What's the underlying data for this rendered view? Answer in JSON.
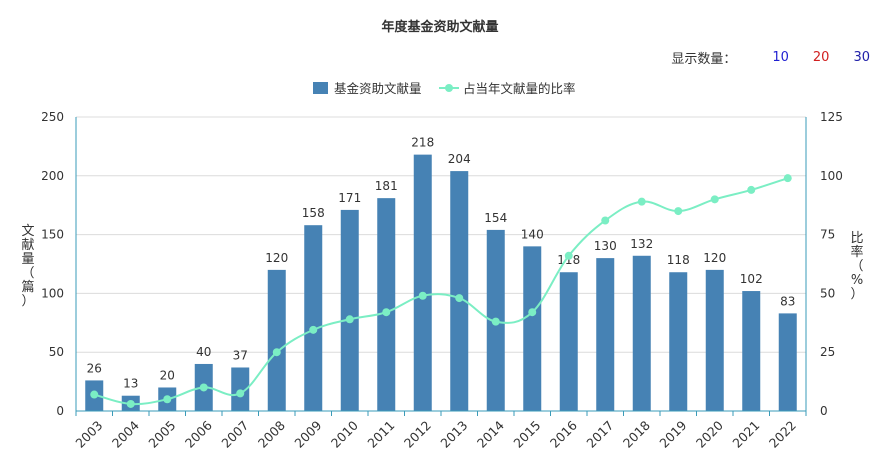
{
  "count_control": {
    "label": "显示数量：",
    "options": [
      {
        "label": "10",
        "color": "#1f1fd1"
      },
      {
        "label": "20",
        "color": "#d11f1f"
      },
      {
        "label": "30",
        "color": "#1f1fa8"
      }
    ]
  },
  "chart_data": {
    "type": "bar",
    "title": "年度基金资助文献量",
    "categories": [
      "2003",
      "2004",
      "2005",
      "2006",
      "2007",
      "2008",
      "2009",
      "2010",
      "2011",
      "2012",
      "2013",
      "2014",
      "2015",
      "2016",
      "2017",
      "2018",
      "2019",
      "2020",
      "2021",
      "2022"
    ],
    "series": [
      {
        "name": "基金资助文献量",
        "type": "bar",
        "axis": "left",
        "color": "#4682b4",
        "values": [
          26,
          13,
          20,
          40,
          37,
          120,
          158,
          171,
          181,
          218,
          204,
          154,
          140,
          118,
          130,
          132,
          118,
          120,
          102,
          83
        ]
      },
      {
        "name": "占当年文献量的比率",
        "type": "line",
        "axis": "right",
        "color": "#7beec4",
        "values": [
          7,
          3,
          5,
          10,
          7.5,
          25,
          34.5,
          39,
          42,
          49,
          48,
          38,
          42,
          66,
          81,
          89,
          85,
          90,
          94,
          99
        ]
      }
    ],
    "ylabel": "文献量（篇）",
    "ylabel2": "比率（%）",
    "ylim": [
      0,
      250
    ],
    "ylim2": [
      0,
      125
    ],
    "yticks": [
      "0",
      "50",
      "100",
      "150",
      "200",
      "250"
    ],
    "yticks2": [
      "0",
      "25",
      "50",
      "75",
      "100",
      "125"
    ],
    "grid": true,
    "legend_position": "top-center"
  }
}
